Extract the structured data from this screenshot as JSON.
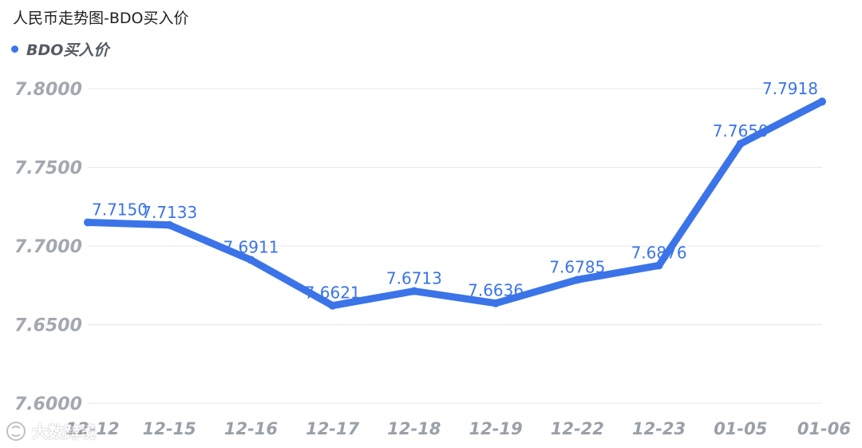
{
  "title": "人民币走势图-BDO买入价",
  "legend": {
    "label": "BDO买入价"
  },
  "watermark": {
    "text": "大数跨境",
    "icon": "brand-logo-icon"
  },
  "colors": {
    "line": "#3b74e8",
    "grid": "#e6e8eb",
    "axis_text": "#a3a8b0"
  },
  "chart_data": {
    "type": "line",
    "title": "人民币走势图-BDO买入价",
    "categories": [
      "12-12",
      "12-15",
      "12-16",
      "12-17",
      "12-18",
      "12-19",
      "12-22",
      "12-23",
      "01-05",
      "01-06"
    ],
    "series": [
      {
        "name": "BDO买入价",
        "values": [
          7.715,
          7.7133,
          7.6911,
          7.6621,
          7.6713,
          7.6636,
          7.6785,
          7.6876,
          7.765,
          7.7918
        ]
      }
    ],
    "data_labels": [
      "7.7150",
      "7.7133",
      "7.6911",
      "7.6621",
      "7.6713",
      "7.6636",
      "7.6785",
      "7.6876",
      "7.7650",
      "7.7918"
    ],
    "ylim": [
      7.6,
      7.8
    ],
    "yticks": [
      "7.8000",
      "7.7500",
      "7.7000",
      "7.6500",
      "7.6000"
    ],
    "grid": true,
    "legend_position": "top-left"
  }
}
